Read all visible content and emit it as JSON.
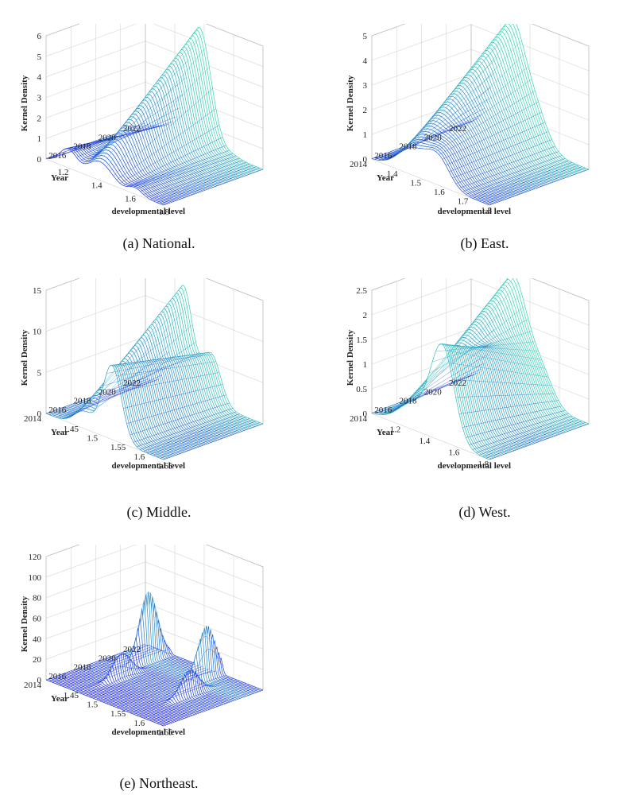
{
  "chart_data": [
    {
      "id": "national",
      "type": "surface3d",
      "caption": "(a) National.",
      "zlabel": "Kernel Density",
      "ylabel": "Year",
      "xlabel": "developmental level",
      "z_ticks": [
        "0",
        "1",
        "2",
        "3",
        "4",
        "5",
        "6"
      ],
      "z_max": 6,
      "y_ticks": [
        "2022",
        "2020",
        "2018",
        "2016"
      ],
      "y_range": [
        2014,
        2022
      ],
      "x_ticks": [
        "1.2",
        "1.4",
        "1.6",
        "1.8"
      ],
      "x_range": [
        1.15,
        1.85
      ],
      "peaks": [
        {
          "x": 1.28,
          "w": 0.05,
          "h0": 0.2,
          "h1": 0.9
        },
        {
          "x": 1.47,
          "w": 0.07,
          "h0": 5.7,
          "h1": 0.9
        },
        {
          "x": 1.68,
          "w": 0.04,
          "h0": 0.1,
          "h1": 0.3
        }
      ]
    },
    {
      "id": "east",
      "type": "surface3d",
      "caption": "(b) East.",
      "zlabel": "Kernel Density",
      "ylabel": "Year",
      "xlabel": "developmental level",
      "z_ticks": [
        "0",
        "1",
        "2",
        "3",
        "4",
        "5"
      ],
      "z_max": 5,
      "y_ticks": [
        "2022",
        "2020",
        "2018",
        "2016",
        "2014"
      ],
      "y_range": [
        2014,
        2022
      ],
      "x_ticks": [
        "1.4",
        "1.5",
        "1.6",
        "1.7",
        "1.8"
      ],
      "x_range": [
        1.35,
        1.85
      ],
      "peaks": [
        {
          "x": 1.52,
          "w": 0.06,
          "h0": 4.8,
          "h1": 1.0
        },
        {
          "x": 1.63,
          "w": 0.05,
          "h0": 1.2,
          "h1": 1.1
        }
      ]
    },
    {
      "id": "middle",
      "type": "surface3d",
      "caption": "(c) Middle.",
      "zlabel": "Kernel Density",
      "ylabel": "Year",
      "xlabel": "developmental level",
      "z_ticks": [
        "0",
        "5",
        "10",
        "15"
      ],
      "z_max": 15,
      "y_ticks": [
        "2022",
        "2020",
        "2018",
        "2016",
        "2014"
      ],
      "y_range": [
        2014,
        2022
      ],
      "x_ticks": [
        "1.45",
        "1.5",
        "1.55",
        "1.6",
        "1.65"
      ],
      "x_range": [
        1.42,
        1.67
      ],
      "peaks": [
        {
          "x": 1.5,
          "w": 0.02,
          "h0": 13,
          "h1": 2
        },
        {
          "x": 1.56,
          "w": 0.02,
          "h0": 6,
          "h1": 9
        }
      ]
    },
    {
      "id": "west",
      "type": "surface3d",
      "caption": "(d) West.",
      "zlabel": "Kernel Density",
      "ylabel": "Year",
      "xlabel": "developmental level",
      "z_ticks": [
        "0",
        "0.5",
        "1",
        "1.5",
        "2",
        "2.5"
      ],
      "z_max": 2.5,
      "y_ticks": [
        "2022",
        "2020",
        "2018",
        "2016",
        "2014"
      ],
      "y_range": [
        2014,
        2022
      ],
      "x_ticks": [
        "1.2",
        "1.4",
        "1.6",
        "1.8"
      ],
      "x_range": [
        1.1,
        1.9
      ],
      "peaks": [
        {
          "x": 1.38,
          "w": 0.1,
          "h0": 2.4,
          "h1": 0.5
        },
        {
          "x": 1.58,
          "w": 0.08,
          "h0": 0.6,
          "h1": 1.9
        }
      ]
    },
    {
      "id": "northeast",
      "type": "surface3d",
      "caption": "(e) Northeast.",
      "zlabel": "Kernel Density",
      "ylabel": "Year",
      "xlabel": "developmental level",
      "z_ticks": [
        "0",
        "20",
        "40",
        "60",
        "80",
        "100",
        "120"
      ],
      "z_max": 120,
      "y_ticks": [
        "2022",
        "2020",
        "2018",
        "2016",
        "2014"
      ],
      "y_range": [
        2014,
        2022
      ],
      "x_ticks": [
        "1.45",
        "1.5",
        "1.55",
        "1.6",
        "1.65"
      ],
      "x_range": [
        1.42,
        1.67
      ],
      "peaks": [
        {
          "x": 1.47,
          "w": 0.004,
          "h0": 85,
          "h1": 0,
          "y0": 2019.5,
          "y1": 2021
        },
        {
          "x": 1.49,
          "w": 0.004,
          "h0": 60,
          "h1": 0,
          "y0": 2016.5,
          "y1": 2018
        },
        {
          "x": 1.58,
          "w": 0.004,
          "h0": 62,
          "h1": 0,
          "y0": 2020,
          "y1": 2021.5
        },
        {
          "x": 1.61,
          "w": 0.004,
          "h0": 47,
          "h1": 0,
          "y0": 2017.5,
          "y1": 2019
        }
      ]
    }
  ]
}
